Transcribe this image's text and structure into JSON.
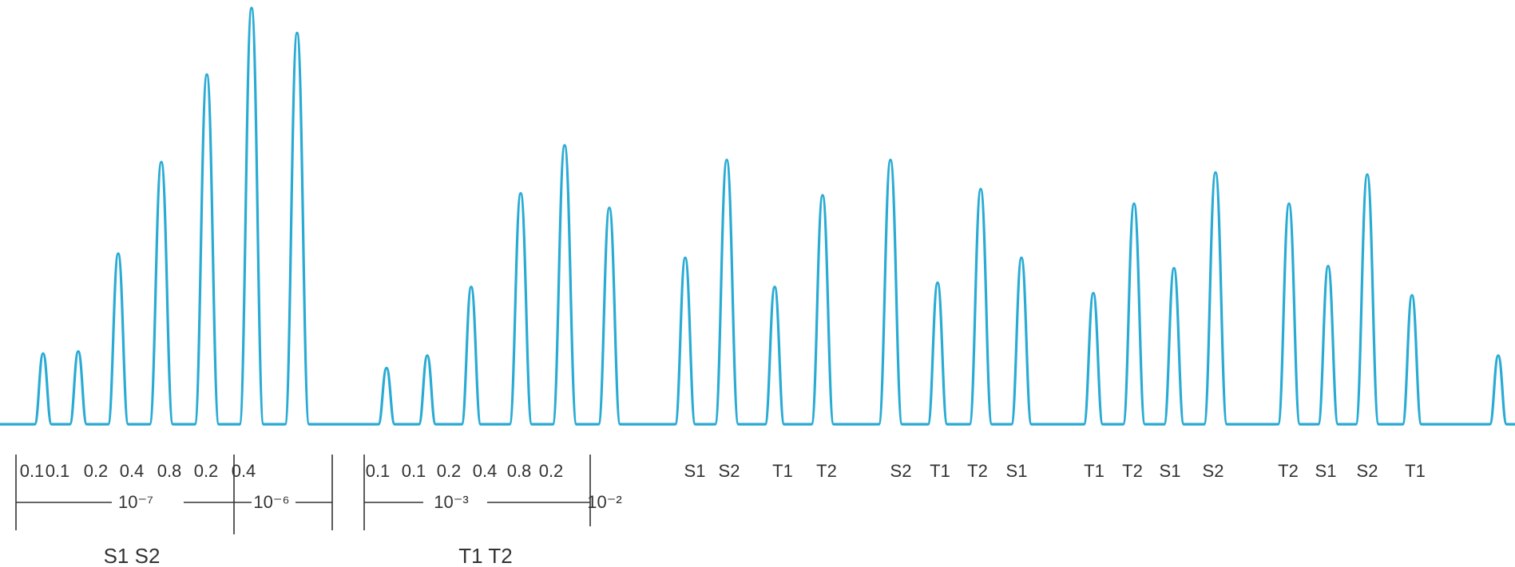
{
  "chart_data": {
    "type": "line",
    "title": "",
    "xlabel": "",
    "ylabel": "",
    "baseline_color": "#29abd4",
    "line_color": "#29abd4",
    "ylim": [
      0,
      100
    ],
    "peaks": [
      {
        "label": "0.1",
        "height": 17
      },
      {
        "label": "0.1",
        "height": 17.5
      },
      {
        "label": "0.2",
        "height": 41
      },
      {
        "label": "0.4",
        "height": 63
      },
      {
        "label": "0.8",
        "height": 84
      },
      {
        "label": "0.2",
        "height": 100
      },
      {
        "label": "0.4",
        "height": 94
      },
      {
        "label": "0.1",
        "height": 13.5
      },
      {
        "label": "0.1",
        "height": 16.5
      },
      {
        "label": "0.2",
        "height": 33
      },
      {
        "label": "0.4",
        "height": 55.5
      },
      {
        "label": "0.8",
        "height": 67
      },
      {
        "label": "0.2",
        "height": 52
      },
      {
        "label": "S1",
        "height": 40
      },
      {
        "label": "S2",
        "height": 63.5
      },
      {
        "label": "T1",
        "height": 33
      },
      {
        "label": "T2",
        "height": 55
      },
      {
        "label": "S2",
        "height": 63.5
      },
      {
        "label": "T1",
        "height": 34
      },
      {
        "label": "T2",
        "height": 56.5
      },
      {
        "label": "S1",
        "height": 40
      },
      {
        "label": "T1",
        "height": 31.5
      },
      {
        "label": "T2",
        "height": 53
      },
      {
        "label": "S1",
        "height": 37.5
      },
      {
        "label": "S2",
        "height": 60.5
      },
      {
        "label": "T2",
        "height": 53
      },
      {
        "label": "S1",
        "height": 38
      },
      {
        "label": "S2",
        "height": 60
      },
      {
        "label": "T1",
        "height": 31
      },
      {
        "label": "",
        "height": 16.5
      }
    ],
    "brackets": [
      {
        "label": "10⁻⁷"
      },
      {
        "label": "10⁻⁶"
      },
      {
        "label": "10⁻³"
      },
      {
        "label": "10⁻²"
      }
    ],
    "group_labels": [
      "S1  S2",
      "T1  T2"
    ]
  }
}
